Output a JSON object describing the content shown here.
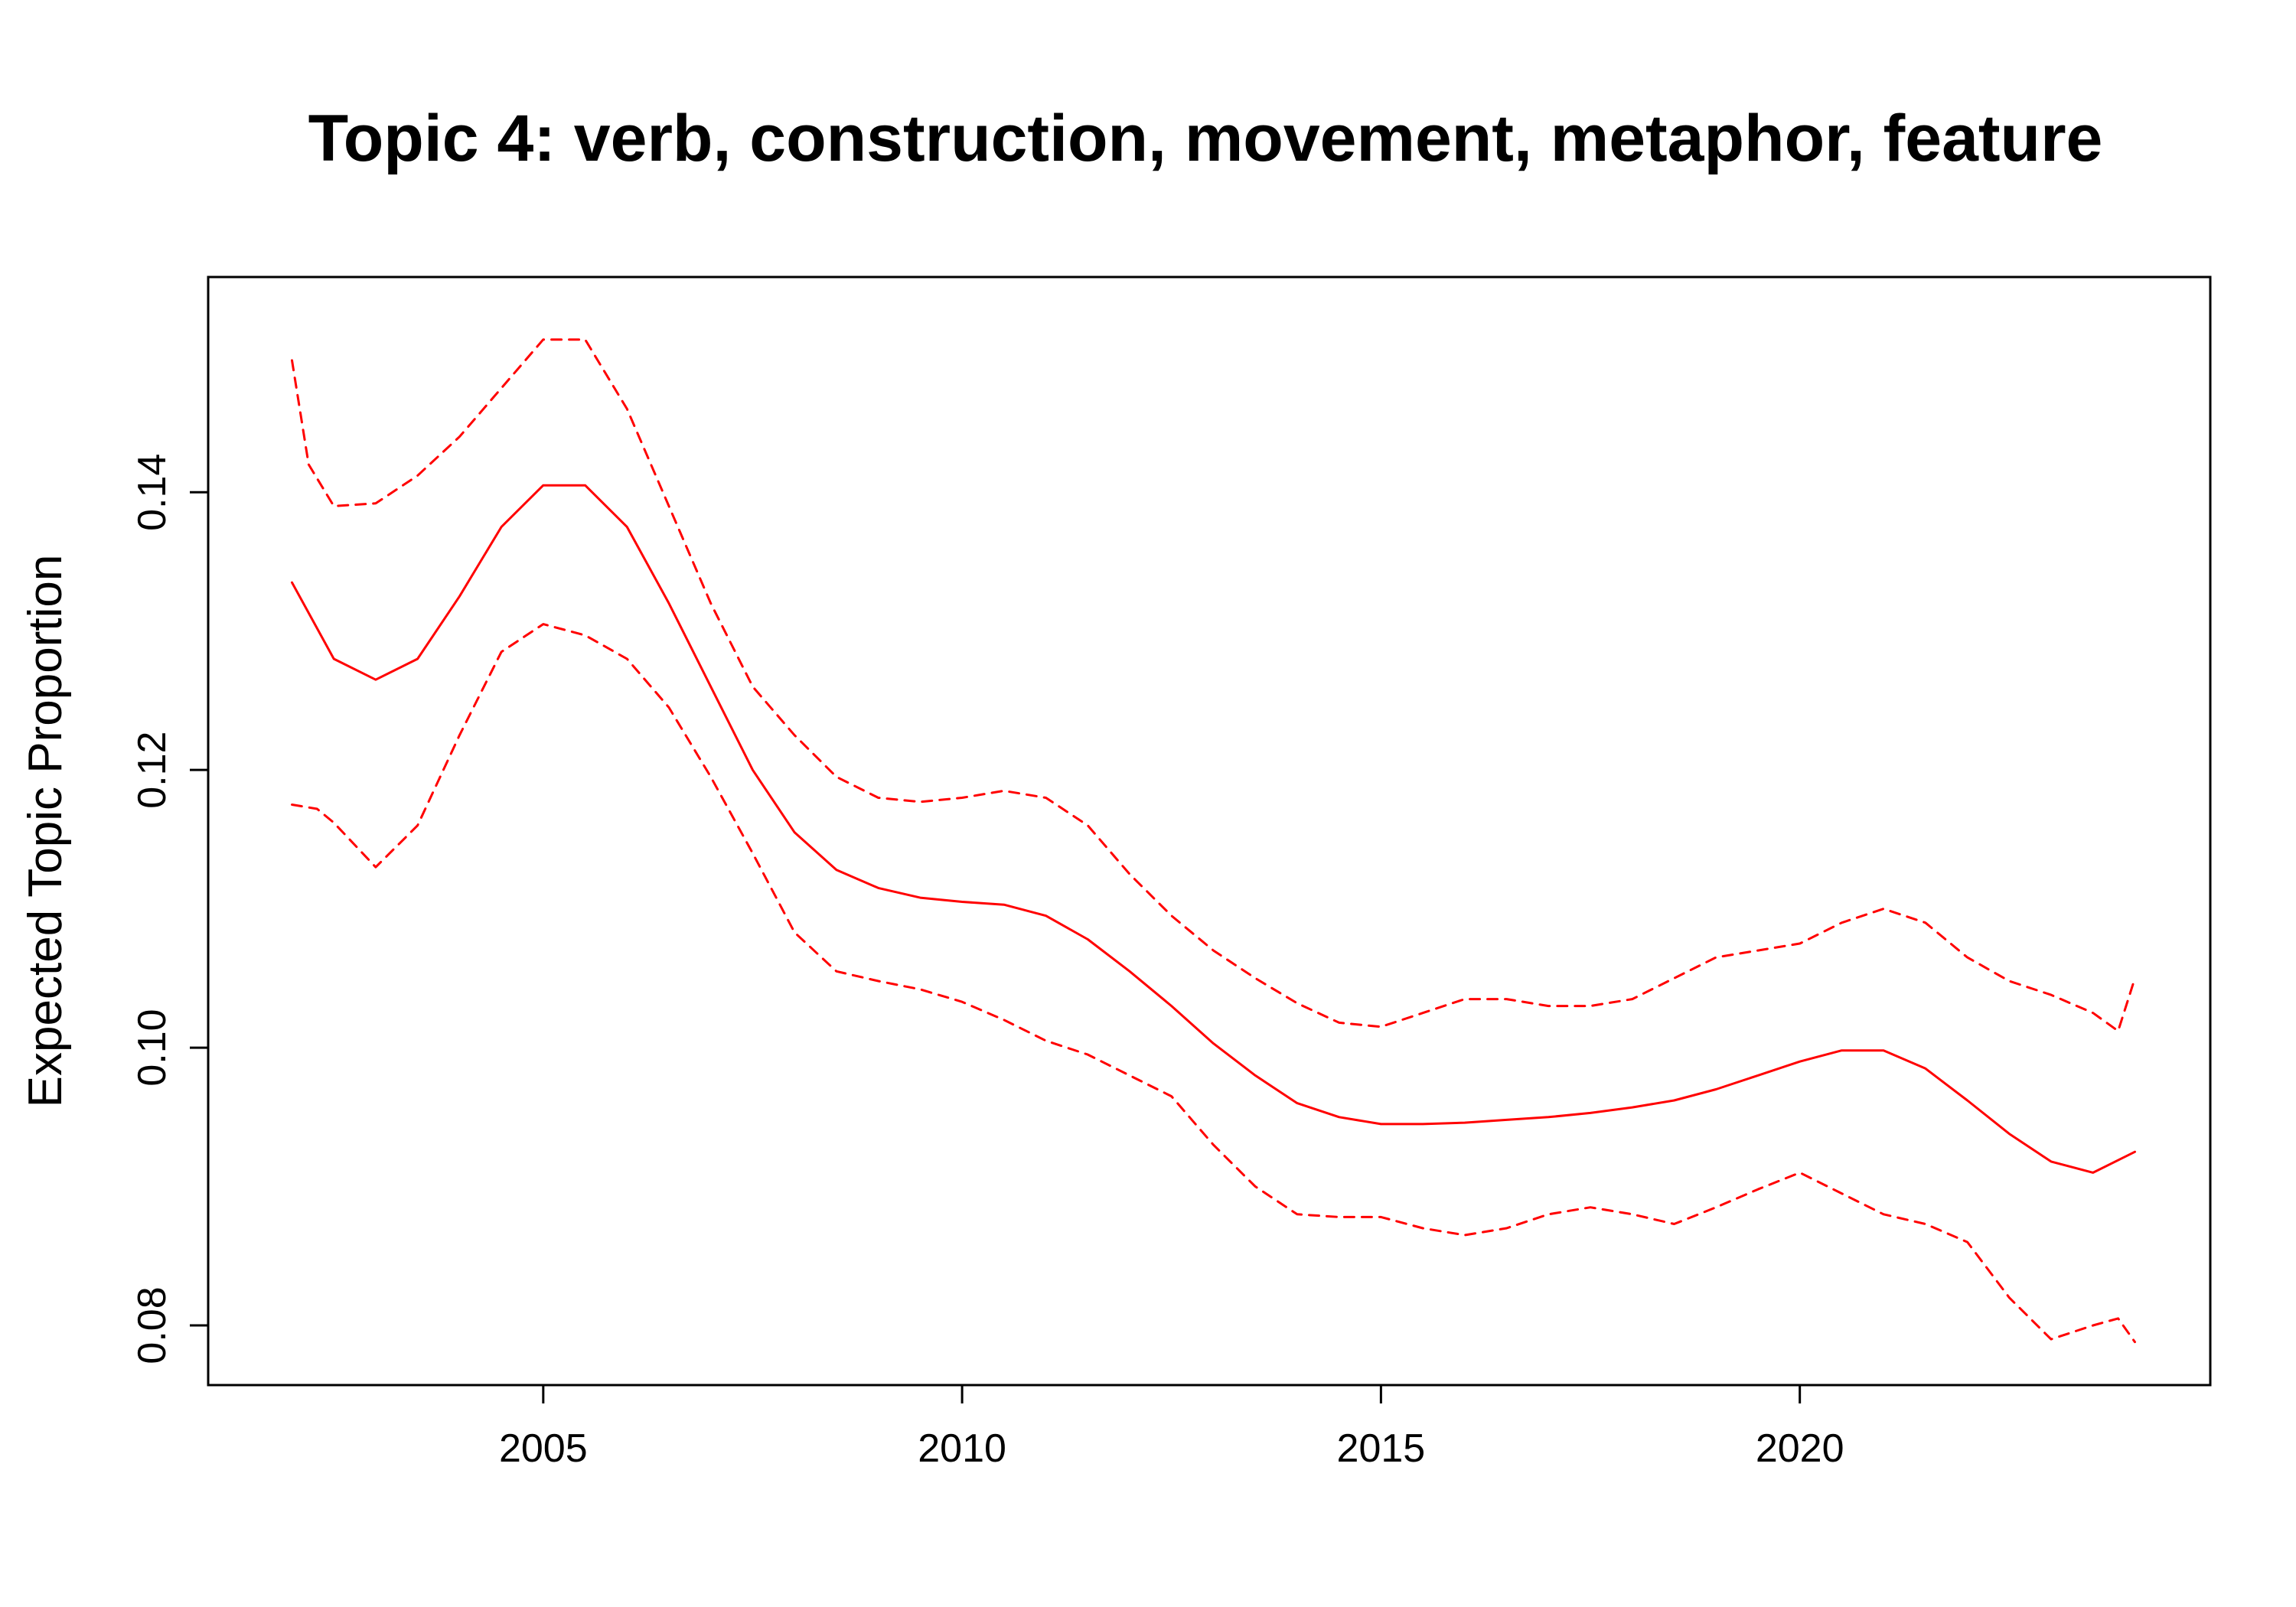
{
  "chart_data": {
    "type": "line",
    "title": "Topic 4: verb, construction, movement, metaphor, feature",
    "xlabel": "",
    "ylabel": "Expected Topic Proportion",
    "xlim": [
      2001.0,
      2024.9
    ],
    "ylim": [
      0.0757,
      0.1555
    ],
    "xticks": [
      2005,
      2010,
      2015,
      2020
    ],
    "yticks": [
      0.08,
      0.1,
      0.12,
      0.14
    ],
    "ytick_labels": [
      "0.08",
      "0.10",
      "0.12",
      "0.14"
    ],
    "grid": false,
    "legend": "none",
    "series": [
      {
        "role": "estimate",
        "color": "#ff0000",
        "style": "solid",
        "x": [
          2002,
          2002.5,
          2003,
          2003.5,
          2004,
          2004.5,
          2005,
          2005.5,
          2006,
          2006.5,
          2007,
          2007.5,
          2008,
          2008.5,
          2009,
          2009.5,
          2010,
          2010.5,
          2011,
          2011.5,
          2012,
          2012.5,
          2013,
          2013.5,
          2014,
          2014.5,
          2015,
          2015.5,
          2016,
          2016.5,
          2017,
          2017.5,
          2018,
          2018.5,
          2019,
          2019.5,
          2020,
          2020.5,
          2021,
          2021.5,
          2022,
          2022.5,
          2023,
          2023.5,
          2024
        ],
        "y": [
          0.1335,
          0.128,
          0.1265,
          0.128,
          0.1325,
          0.1375,
          0.1405,
          0.1405,
          0.1375,
          0.132,
          0.126,
          0.12,
          0.1155,
          0.1128,
          0.1115,
          0.1108,
          0.1105,
          0.1103,
          0.1095,
          0.1078,
          0.1055,
          0.103,
          0.1003,
          0.098,
          0.096,
          0.095,
          0.0945,
          0.0945,
          0.0946,
          0.0948,
          0.095,
          0.0953,
          0.0957,
          0.0962,
          0.097,
          0.098,
          0.099,
          0.0998,
          0.0998,
          0.0985,
          0.0962,
          0.0938,
          0.0918,
          0.091,
          0.0925
        ]
      },
      {
        "role": "upper-bound",
        "color": "#ff0000",
        "style": "dashed",
        "x": [
          2002,
          2002.2,
          2002.5,
          2003,
          2003.5,
          2004,
          2004.5,
          2005,
          2005.5,
          2006,
          2006.5,
          2007,
          2007.5,
          2008,
          2008.5,
          2009,
          2009.5,
          2010,
          2010.5,
          2011,
          2011.5,
          2012,
          2012.5,
          2013,
          2013.5,
          2014,
          2014.5,
          2015,
          2015.5,
          2016,
          2016.5,
          2017,
          2017.5,
          2018,
          2018.5,
          2019,
          2019.5,
          2020,
          2020.5,
          2021,
          2021.5,
          2022,
          2022.5,
          2023,
          2023.5,
          2023.8,
          2024
        ],
        "y": [
          0.1495,
          0.142,
          0.139,
          0.1392,
          0.1412,
          0.144,
          0.1475,
          0.151,
          0.151,
          0.146,
          0.139,
          0.132,
          0.126,
          0.1225,
          0.1195,
          0.118,
          0.1177,
          0.118,
          0.1185,
          0.118,
          0.116,
          0.1125,
          0.1095,
          0.107,
          0.105,
          0.1032,
          0.1018,
          0.1015,
          0.1025,
          0.1035,
          0.1035,
          0.103,
          0.103,
          0.1035,
          0.105,
          0.1065,
          0.107,
          0.1075,
          0.109,
          0.11,
          0.109,
          0.1065,
          0.1048,
          0.1038,
          0.1025,
          0.1012,
          0.105
        ]
      },
      {
        "role": "lower-bound",
        "color": "#ff0000",
        "style": "dashed",
        "x": [
          2002,
          2002.3,
          2002.5,
          2003,
          2003.5,
          2004,
          2004.5,
          2005,
          2005.5,
          2006,
          2006.5,
          2007,
          2007.5,
          2008,
          2008.5,
          2009,
          2009.5,
          2010,
          2010.5,
          2011,
          2011.5,
          2012,
          2012.5,
          2013,
          2013.5,
          2014,
          2014.5,
          2015,
          2015.5,
          2016,
          2016.5,
          2017,
          2017.5,
          2018,
          2018.5,
          2019,
          2019.5,
          2020,
          2020.5,
          2021,
          2021.5,
          2022,
          2022.5,
          2023,
          2023.5,
          2023.8,
          2024
        ],
        "y": [
          0.1175,
          0.1172,
          0.1162,
          0.113,
          0.116,
          0.1225,
          0.1285,
          0.1305,
          0.1297,
          0.128,
          0.1245,
          0.1195,
          0.114,
          0.1083,
          0.1055,
          0.1048,
          0.1042,
          0.1033,
          0.102,
          0.1005,
          0.0995,
          0.098,
          0.0965,
          0.093,
          0.09,
          0.088,
          0.0878,
          0.0878,
          0.087,
          0.0865,
          0.087,
          0.088,
          0.0885,
          0.088,
          0.0873,
          0.0885,
          0.0898,
          0.091,
          0.0895,
          0.088,
          0.0873,
          0.086,
          0.082,
          0.079,
          0.08,
          0.0805,
          0.0788
        ]
      }
    ]
  }
}
